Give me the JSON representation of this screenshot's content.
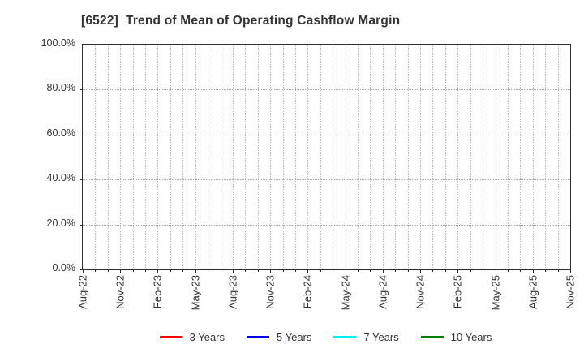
{
  "header": {
    "title": "[6522]  Trend of Mean of Operating Cashflow Margin"
  },
  "chart_data": {
    "type": "line",
    "title": "[6522]  Trend of Mean of Operating Cashflow Margin",
    "x_axis": {
      "tick_labels": [
        "Aug-22",
        "Nov-22",
        "Feb-23",
        "May-23",
        "Aug-23",
        "Nov-23",
        "Feb-24",
        "May-24",
        "Aug-24",
        "Nov-24",
        "Feb-25",
        "May-25",
        "Aug-25",
        "Nov-25"
      ],
      "minor_unit": "month",
      "months_total": 39,
      "months_per_major_tick": 3,
      "label_rotation_degrees": 90
    },
    "y_axis": {
      "tick_values": [
        0,
        20,
        40,
        60,
        80,
        100
      ],
      "tick_labels": [
        "0.0%",
        "20.0%",
        "40.0%",
        "60.0%",
        "80.0%",
        "100.0%"
      ],
      "ylim": [
        0,
        100
      ],
      "unit": "%"
    },
    "grid": {
      "show": true,
      "vertical_color": "#b9b9b9",
      "horizontal_color": "#a0a0a0",
      "axis_color": "#2e2e2e"
    },
    "legend": {
      "position": "bottom",
      "entries": [
        {
          "label": "3 Years",
          "color": "#ff0000"
        },
        {
          "label": "5 Years",
          "color": "#0000ee"
        },
        {
          "label": "7 Years",
          "color": "#00eeee"
        },
        {
          "label": "10 Years",
          "color": "#008000"
        }
      ]
    },
    "series": [
      {
        "name": "3 Years",
        "color": "#ff0000",
        "values": []
      },
      {
        "name": "5 Years",
        "color": "#0000ee",
        "values": []
      },
      {
        "name": "7 Years",
        "color": "#00eeee",
        "values": []
      },
      {
        "name": "10 Years",
        "color": "#008000",
        "values": []
      }
    ]
  }
}
